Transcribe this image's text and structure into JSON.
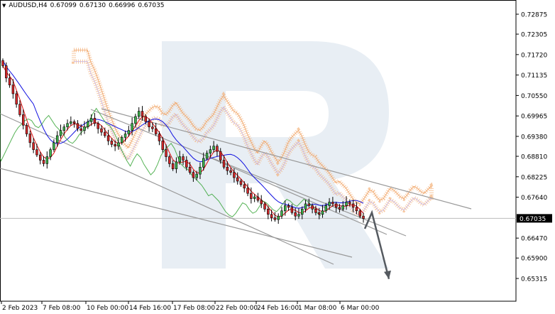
{
  "header": {
    "symbol": "AUDUSD,H4",
    "open": "0.67099",
    "high": "0.67130",
    "low": "0.66996",
    "close": "0.67035"
  },
  "chart_data": {
    "type": "candlestick",
    "title": "AUDUSD,H4 0.67099 0.67130 0.66996 0.67035",
    "ylim": [
      0.65,
      0.734
    ],
    "y_ticks": [
      "0.72875",
      "0.72305",
      "0.71720",
      "0.71135",
      "0.70550",
      "0.69965",
      "0.69380",
      "0.68810",
      "0.68225",
      "0.67640",
      "0.67035",
      "0.66470",
      "0.65900",
      "0.65315"
    ],
    "current_price": "0.67035",
    "x_ticks": [
      "2 Feb 2023",
      "7 Feb 08:00",
      "10 Feb 00:00",
      "14 Feb 16:00",
      "17 Feb 08:00",
      "22 Feb 00:00",
      "24 Feb 16:00",
      "1 Mar 08:00",
      "6 Mar 00:00"
    ],
    "grid": false,
    "ohlc_closes": [
      0.714,
      0.7105,
      0.7085,
      0.706,
      0.703,
      0.7,
      0.697,
      0.6945,
      0.692,
      0.69,
      0.6885,
      0.687,
      0.686,
      0.688,
      0.69,
      0.692,
      0.694,
      0.6955,
      0.6965,
      0.6975,
      0.698,
      0.6975,
      0.696,
      0.6955,
      0.6965,
      0.698,
      0.699,
      0.6975,
      0.696,
      0.695,
      0.694,
      0.6925,
      0.6915,
      0.691,
      0.692,
      0.6935,
      0.6945,
      0.6955,
      0.6975,
      0.6995,
      0.701,
      0.6995,
      0.698,
      0.6965,
      0.696,
      0.6945,
      0.6925,
      0.69,
      0.688,
      0.686,
      0.6845,
      0.6865,
      0.688,
      0.687,
      0.685,
      0.6835,
      0.682,
      0.683,
      0.685,
      0.6875,
      0.689,
      0.69,
      0.691,
      0.6895,
      0.687,
      0.685,
      0.684,
      0.6835,
      0.682,
      0.681,
      0.68,
      0.679,
      0.6775,
      0.676,
      0.6765,
      0.6755,
      0.6745,
      0.673,
      0.6715,
      0.6705,
      0.67,
      0.671,
      0.6725,
      0.674,
      0.6735,
      0.672,
      0.671,
      0.6715,
      0.673,
      0.6745,
      0.674,
      0.673,
      0.672,
      0.6715,
      0.6725,
      0.674,
      0.675,
      0.6745,
      0.6735,
      0.673,
      0.674,
      0.675,
      0.6745,
      0.6735,
      0.6725,
      0.671,
      0.6703
    ],
    "forecast_arrow": {
      "from": 0.672,
      "to": 0.653
    }
  }
}
